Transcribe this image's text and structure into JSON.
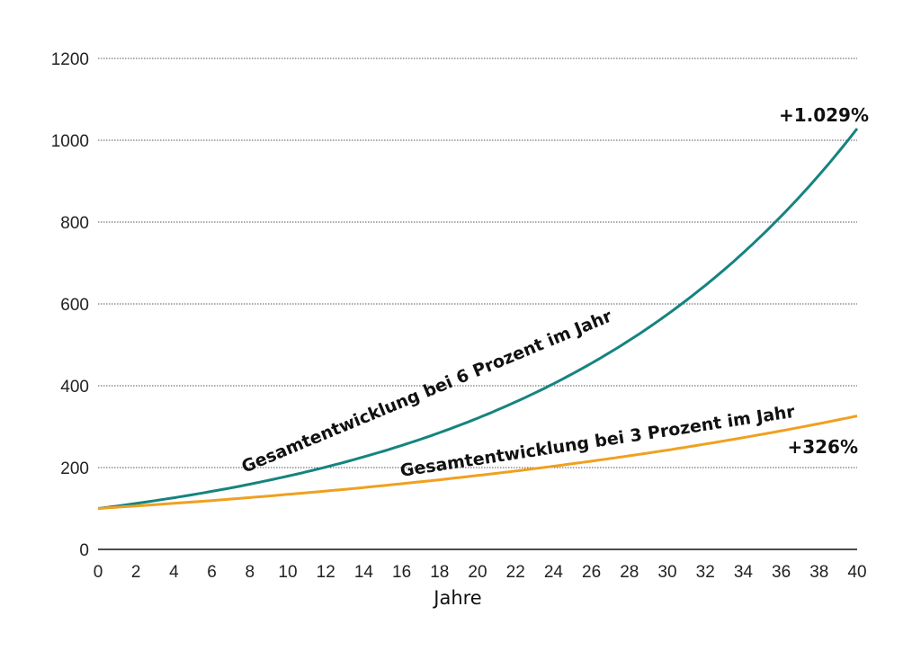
{
  "chart_data": {
    "type": "line",
    "title": "",
    "xlabel": "Jahre",
    "ylabel": "",
    "xlim": [
      0,
      40
    ],
    "ylim": [
      0,
      1200
    ],
    "grid": true,
    "x_ticks": [
      0,
      2,
      4,
      6,
      8,
      10,
      12,
      14,
      16,
      18,
      20,
      22,
      24,
      26,
      28,
      30,
      32,
      34,
      36,
      38,
      40
    ],
    "y_ticks": [
      0,
      200,
      400,
      600,
      800,
      1000,
      1200
    ],
    "x": [
      0,
      2,
      4,
      6,
      8,
      10,
      12,
      14,
      16,
      18,
      20,
      22,
      24,
      26,
      28,
      30,
      32,
      34,
      36,
      38,
      40
    ],
    "series": [
      {
        "name": "Gesamtentwicklung bei 6 Prozent im Jahr",
        "color": "#15847f",
        "values": [
          100,
          112.4,
          126.2,
          141.9,
          159.4,
          179.1,
          201.2,
          226.1,
          254.0,
          285.4,
          320.7,
          360.4,
          404.9,
          455.0,
          511.1,
          574.3,
          645.3,
          725.1,
          814.7,
          915.4,
          1028.6
        ],
        "end_annotation": "+1.029%"
      },
      {
        "name": "Gesamtentwicklung bei 3 Prozent im Jahr",
        "color": "#f0a020",
        "values": [
          100,
          106.1,
          112.6,
          119.4,
          126.7,
          134.4,
          142.6,
          151.3,
          160.5,
          170.2,
          180.6,
          191.6,
          203.3,
          215.7,
          228.8,
          242.7,
          257.5,
          273.2,
          289.8,
          307.5,
          326.2
        ],
        "end_annotation": "+326%"
      }
    ],
    "legend_position": "inline-labels"
  }
}
